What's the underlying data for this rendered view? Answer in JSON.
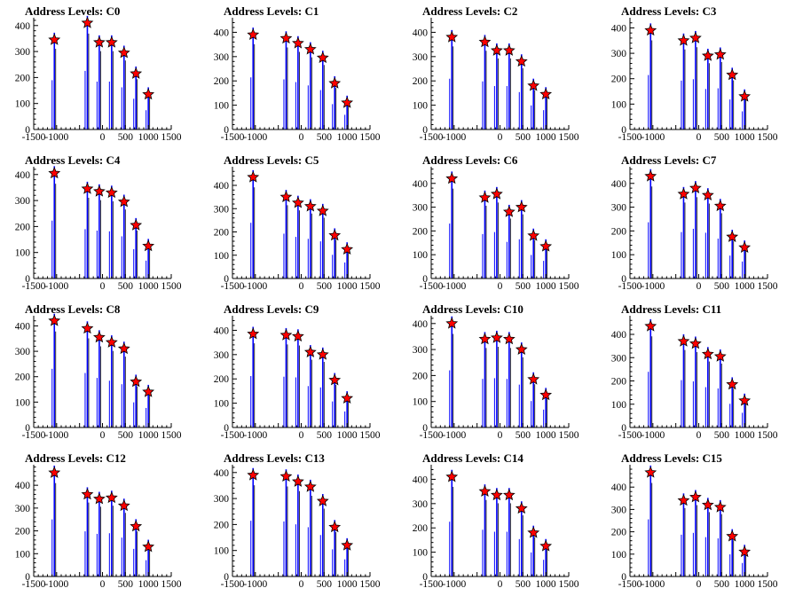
{
  "chart_data": [
    {
      "type": "bar",
      "title": "Address Levels: C0",
      "xlim": [
        -1500,
        1500
      ],
      "ylim": [
        0,
        430
      ],
      "xticks": [
        -1500,
        -1000,
        -500,
        0,
        500,
        1000,
        1500
      ],
      "xtick_labels": [
        "-1500",
        "-1000",
        "",
        "0",
        "500",
        "1000",
        "1500"
      ],
      "yticks": [
        0,
        100,
        200,
        300,
        400
      ],
      "ytick_labels": [
        "0",
        "100",
        "200",
        "300",
        "400"
      ],
      "peaks": [
        {
          "x": -1050,
          "y": 345
        },
        {
          "x": -330,
          "y": 410
        },
        {
          "x": -70,
          "y": 335
        },
        {
          "x": 200,
          "y": 335
        },
        {
          "x": 470,
          "y": 295
        },
        {
          "x": 730,
          "y": 215
        },
        {
          "x": 1000,
          "y": 135
        }
      ]
    },
    {
      "type": "bar",
      "title": "Address Levels: C1",
      "xlim": [
        -1500,
        1500
      ],
      "ylim": [
        0,
        460
      ],
      "xticks": [
        -1500,
        -1000,
        -500,
        0,
        500,
        1000,
        1500
      ],
      "xtick_labels": [
        "-1500",
        "-1000",
        "",
        "0",
        "500",
        "1000",
        "1500"
      ],
      "yticks": [
        0,
        100,
        200,
        300,
        400
      ],
      "ytick_labels": [
        "0",
        "100",
        "200",
        "300",
        "400"
      ],
      "peaks": [
        {
          "x": -1050,
          "y": 390
        },
        {
          "x": -330,
          "y": 375
        },
        {
          "x": -70,
          "y": 355
        },
        {
          "x": 200,
          "y": 330
        },
        {
          "x": 470,
          "y": 295
        },
        {
          "x": 730,
          "y": 190
        },
        {
          "x": 1000,
          "y": 110
        }
      ]
    },
    {
      "type": "bar",
      "title": "Address Levels: C2",
      "xlim": [
        -1500,
        1500
      ],
      "ylim": [
        0,
        460
      ],
      "xticks": [
        -1500,
        -1000,
        -500,
        0,
        500,
        1000,
        1500
      ],
      "xtick_labels": [
        "-1500",
        "-1000",
        "",
        "0",
        "500",
        "1000",
        "1500"
      ],
      "yticks": [
        0,
        100,
        200,
        300,
        400
      ],
      "ytick_labels": [
        "0",
        "100",
        "200",
        "300",
        "400"
      ],
      "peaks": [
        {
          "x": -1050,
          "y": 380
        },
        {
          "x": -330,
          "y": 360
        },
        {
          "x": -70,
          "y": 325
        },
        {
          "x": 200,
          "y": 325
        },
        {
          "x": 470,
          "y": 280
        },
        {
          "x": 730,
          "y": 180
        },
        {
          "x": 1000,
          "y": 145
        }
      ]
    },
    {
      "type": "bar",
      "title": "Address Levels: C3",
      "xlim": [
        -1500,
        1500
      ],
      "ylim": [
        0,
        440
      ],
      "xticks": [
        -1500,
        -1000,
        -500,
        0,
        500,
        1000,
        1500
      ],
      "xtick_labels": [
        "-1500",
        "-1000",
        "",
        "0",
        "500",
        "1000",
        "1500"
      ],
      "yticks": [
        0,
        100,
        200,
        300,
        400
      ],
      "ytick_labels": [
        "0",
        "100",
        "200",
        "300",
        "400"
      ],
      "peaks": [
        {
          "x": -1050,
          "y": 390
        },
        {
          "x": -330,
          "y": 350
        },
        {
          "x": -70,
          "y": 360
        },
        {
          "x": 200,
          "y": 290
        },
        {
          "x": 470,
          "y": 295
        },
        {
          "x": 730,
          "y": 215
        },
        {
          "x": 1000,
          "y": 130
        }
      ]
    },
    {
      "type": "bar",
      "title": "Address Levels: C4",
      "xlim": [
        -1500,
        1500
      ],
      "ylim": [
        0,
        430
      ],
      "xticks": [
        -1500,
        -1000,
        -500,
        0,
        500,
        1000,
        1500
      ],
      "xtick_labels": [
        "-1500",
        "-1000",
        "",
        "0",
        "500",
        "1000",
        "1500"
      ],
      "yticks": [
        0,
        100,
        200,
        300,
        400
      ],
      "ytick_labels": [
        "0",
        "100",
        "200",
        "300",
        "400"
      ],
      "peaks": [
        {
          "x": -1050,
          "y": 405
        },
        {
          "x": -330,
          "y": 345
        },
        {
          "x": -70,
          "y": 335
        },
        {
          "x": 200,
          "y": 330
        },
        {
          "x": 470,
          "y": 295
        },
        {
          "x": 730,
          "y": 205
        },
        {
          "x": 1000,
          "y": 125
        }
      ]
    },
    {
      "type": "bar",
      "title": "Address Levels: C5",
      "xlim": [
        -1500,
        1500
      ],
      "ylim": [
        0,
        480
      ],
      "xticks": [
        -1500,
        -1000,
        -500,
        0,
        500,
        1000,
        1500
      ],
      "xtick_labels": [
        "-1500",
        "-1000",
        "",
        "0",
        "500",
        "1000",
        "1500"
      ],
      "yticks": [
        0,
        100,
        200,
        300,
        400
      ],
      "ytick_labels": [
        "0",
        "100",
        "200",
        "300",
        "400"
      ],
      "peaks": [
        {
          "x": -1050,
          "y": 435
        },
        {
          "x": -330,
          "y": 350
        },
        {
          "x": -70,
          "y": 325
        },
        {
          "x": 200,
          "y": 310
        },
        {
          "x": 470,
          "y": 290
        },
        {
          "x": 730,
          "y": 185
        },
        {
          "x": 1000,
          "y": 125
        }
      ]
    },
    {
      "type": "bar",
      "title": "Address Levels: C6",
      "xlim": [
        -1500,
        1500
      ],
      "ylim": [
        0,
        470
      ],
      "xticks": [
        -1500,
        -1000,
        -500,
        0,
        500,
        1000,
        1500
      ],
      "xtick_labels": [
        "-1500",
        "-1000",
        "",
        "0",
        "500",
        "1000",
        "1500"
      ],
      "yticks": [
        0,
        100,
        200,
        300,
        400
      ],
      "ytick_labels": [
        "0",
        "100",
        "200",
        "300",
        "400"
      ],
      "peaks": [
        {
          "x": -1050,
          "y": 420
        },
        {
          "x": -330,
          "y": 340
        },
        {
          "x": -70,
          "y": 355
        },
        {
          "x": 200,
          "y": 280
        },
        {
          "x": 470,
          "y": 300
        },
        {
          "x": 730,
          "y": 180
        },
        {
          "x": 1000,
          "y": 135
        }
      ]
    },
    {
      "type": "bar",
      "title": "Address Levels: C7",
      "xlim": [
        -1500,
        1500
      ],
      "ylim": [
        0,
        470
      ],
      "xticks": [
        -1500,
        -1000,
        -500,
        0,
        500,
        1000,
        1500
      ],
      "xtick_labels": [
        "-1500",
        "-1000",
        "",
        "0",
        "500",
        "1000",
        "1500"
      ],
      "yticks": [
        0,
        100,
        200,
        300,
        400
      ],
      "ytick_labels": [
        "0",
        "100",
        "200",
        "300",
        "400"
      ],
      "peaks": [
        {
          "x": -1050,
          "y": 430
        },
        {
          "x": -330,
          "y": 355
        },
        {
          "x": -70,
          "y": 380
        },
        {
          "x": 200,
          "y": 350
        },
        {
          "x": 470,
          "y": 305
        },
        {
          "x": 730,
          "y": 175
        },
        {
          "x": 1000,
          "y": 130
        }
      ]
    },
    {
      "type": "bar",
      "title": "Address Levels: C8",
      "xlim": [
        -1500,
        1500
      ],
      "ylim": [
        0,
        440
      ],
      "xticks": [
        -1500,
        -1000,
        -500,
        0,
        500,
        1000,
        1500
      ],
      "xtick_labels": [
        "-1500",
        "-1000",
        "",
        "0",
        "500",
        "1000",
        "1500"
      ],
      "yticks": [
        0,
        100,
        200,
        300,
        400
      ],
      "ytick_labels": [
        "0",
        "100",
        "200",
        "300",
        "400"
      ],
      "peaks": [
        {
          "x": -1050,
          "y": 420
        },
        {
          "x": -330,
          "y": 390
        },
        {
          "x": -70,
          "y": 355
        },
        {
          "x": 200,
          "y": 335
        },
        {
          "x": 470,
          "y": 310
        },
        {
          "x": 730,
          "y": 180
        },
        {
          "x": 1000,
          "y": 140
        }
      ]
    },
    {
      "type": "bar",
      "title": "Address Levels: C9",
      "xlim": [
        -1500,
        1500
      ],
      "ylim": [
        0,
        460
      ],
      "xticks": [
        -1500,
        -1000,
        -500,
        0,
        500,
        1000,
        1500
      ],
      "xtick_labels": [
        "-1500",
        "-1000",
        "",
        "0",
        "500",
        "1000",
        "1500"
      ],
      "yticks": [
        0,
        100,
        200,
        300,
        400
      ],
      "ytick_labels": [
        "0",
        "100",
        "200",
        "300",
        "400"
      ],
      "peaks": [
        {
          "x": -1050,
          "y": 385
        },
        {
          "x": -330,
          "y": 380
        },
        {
          "x": -70,
          "y": 375
        },
        {
          "x": 200,
          "y": 310
        },
        {
          "x": 470,
          "y": 300
        },
        {
          "x": 730,
          "y": 195
        },
        {
          "x": 1000,
          "y": 120
        }
      ]
    },
    {
      "type": "bar",
      "title": "Address Levels: C10",
      "xlim": [
        -1500,
        1500
      ],
      "ylim": [
        0,
        430
      ],
      "xticks": [
        -1500,
        -1000,
        -500,
        0,
        500,
        1000,
        1500
      ],
      "xtick_labels": [
        "-1500",
        "-1000",
        "",
        "0",
        "500",
        "1000",
        "1500"
      ],
      "yticks": [
        0,
        100,
        200,
        300,
        400
      ],
      "ytick_labels": [
        "0",
        "100",
        "200",
        "300",
        "400"
      ],
      "peaks": [
        {
          "x": -1050,
          "y": 400
        },
        {
          "x": -330,
          "y": 340
        },
        {
          "x": -70,
          "y": 345
        },
        {
          "x": 200,
          "y": 340
        },
        {
          "x": 470,
          "y": 300
        },
        {
          "x": 730,
          "y": 185
        },
        {
          "x": 1000,
          "y": 125
        }
      ]
    },
    {
      "type": "bar",
      "title": "Address Levels: C11",
      "xlim": [
        -1500,
        1500
      ],
      "ylim": [
        0,
        480
      ],
      "xticks": [
        -1500,
        -1000,
        -500,
        0,
        500,
        1000,
        1500
      ],
      "xtick_labels": [
        "-1500",
        "-1000",
        "",
        "0",
        "500",
        "1000",
        "1500"
      ],
      "yticks": [
        0,
        100,
        200,
        300,
        400
      ],
      "ytick_labels": [
        "0",
        "100",
        "200",
        "300",
        "400"
      ],
      "peaks": [
        {
          "x": -1050,
          "y": 435
        },
        {
          "x": -330,
          "y": 370
        },
        {
          "x": -70,
          "y": 360
        },
        {
          "x": 200,
          "y": 315
        },
        {
          "x": 470,
          "y": 305
        },
        {
          "x": 730,
          "y": 185
        },
        {
          "x": 1000,
          "y": 115
        }
      ]
    },
    {
      "type": "bar",
      "title": "Address Levels: C12",
      "xlim": [
        -1500,
        1500
      ],
      "ylim": [
        0,
        490
      ],
      "xticks": [
        -1500,
        -1000,
        -500,
        0,
        500,
        1000,
        1500
      ],
      "xtick_labels": [
        "-1500",
        "-1000",
        "",
        "0",
        "500",
        "1000",
        "1500"
      ],
      "yticks": [
        0,
        100,
        200,
        300,
        400
      ],
      "ytick_labels": [
        "0",
        "100",
        "200",
        "300",
        "400"
      ],
      "peaks": [
        {
          "x": -1050,
          "y": 455
        },
        {
          "x": -330,
          "y": 360
        },
        {
          "x": -70,
          "y": 340
        },
        {
          "x": 200,
          "y": 345
        },
        {
          "x": 470,
          "y": 310
        },
        {
          "x": 730,
          "y": 220
        },
        {
          "x": 1000,
          "y": 130
        }
      ]
    },
    {
      "type": "bar",
      "title": "Address Levels: C13",
      "xlim": [
        -1500,
        1500
      ],
      "ylim": [
        0,
        430
      ],
      "xticks": [
        -1500,
        -1000,
        -500,
        0,
        500,
        1000,
        1500
      ],
      "xtick_labels": [
        "-1500",
        "-1000",
        "",
        "0",
        "500",
        "1000",
        "1500"
      ],
      "yticks": [
        0,
        100,
        200,
        300,
        400
      ],
      "ytick_labels": [
        "0",
        "100",
        "200",
        "300",
        "400"
      ],
      "peaks": [
        {
          "x": -1050,
          "y": 390
        },
        {
          "x": -330,
          "y": 385
        },
        {
          "x": -70,
          "y": 365
        },
        {
          "x": 200,
          "y": 345
        },
        {
          "x": 470,
          "y": 290
        },
        {
          "x": 730,
          "y": 190
        },
        {
          "x": 1000,
          "y": 120
        }
      ]
    },
    {
      "type": "bar",
      "title": "Address Levels: C14",
      "xlim": [
        -1500,
        1500
      ],
      "ylim": [
        0,
        460
      ],
      "xticks": [
        -1500,
        -1000,
        -500,
        0,
        500,
        1000,
        1500
      ],
      "xtick_labels": [
        "-1500",
        "-1000",
        "",
        "0",
        "500",
        "1000",
        "1500"
      ],
      "yticks": [
        0,
        100,
        200,
        300,
        400
      ],
      "ytick_labels": [
        "0",
        "100",
        "200",
        "300",
        "400"
      ],
      "peaks": [
        {
          "x": -1050,
          "y": 410
        },
        {
          "x": -330,
          "y": 350
        },
        {
          "x": -70,
          "y": 335
        },
        {
          "x": 200,
          "y": 335
        },
        {
          "x": 470,
          "y": 280
        },
        {
          "x": 730,
          "y": 180
        },
        {
          "x": 1000,
          "y": 125
        }
      ]
    },
    {
      "type": "bar",
      "title": "Address Levels: C15",
      "xlim": [
        -1500,
        1500
      ],
      "ylim": [
        0,
        500
      ],
      "xticks": [
        -1500,
        -1000,
        -500,
        0,
        500,
        1000,
        1500
      ],
      "xtick_labels": [
        "-1500",
        "-1000",
        "",
        "0",
        "500",
        "1000",
        "1500"
      ],
      "yticks": [
        0,
        100,
        200,
        300,
        400
      ],
      "ytick_labels": [
        "0",
        "100",
        "200",
        "300",
        "400"
      ],
      "peaks": [
        {
          "x": -1050,
          "y": 465
        },
        {
          "x": -330,
          "y": 340
        },
        {
          "x": -70,
          "y": 355
        },
        {
          "x": 200,
          "y": 320
        },
        {
          "x": 470,
          "y": 310
        },
        {
          "x": 730,
          "y": 180
        },
        {
          "x": 1000,
          "y": 110
        }
      ]
    }
  ],
  "colors": {
    "histogram": "#0000ff",
    "marker_fill": "#ff0000",
    "marker_stroke": "#000000",
    "axis": "#000000"
  }
}
